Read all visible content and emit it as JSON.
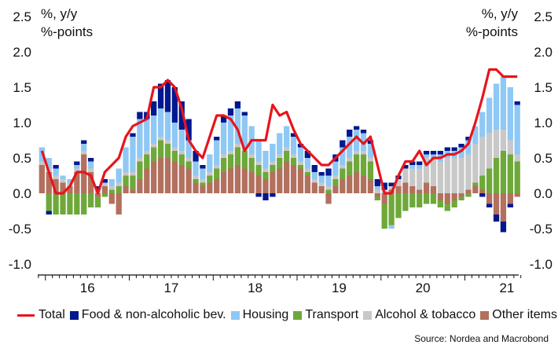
{
  "chart_data": {
    "type": "bar",
    "stacked": true,
    "left_axis_label": [
      "%, y/y",
      "%-points"
    ],
    "right_axis_label": [
      "%, y/y",
      "%-points"
    ],
    "yticks": [
      "2.5",
      "2.0",
      "1.5",
      "1.0",
      "0.5",
      "0.0",
      "-0.5",
      "-1.0"
    ],
    "ylim": [
      -1.1,
      2.5
    ],
    "year_labels": [
      "16",
      "17",
      "18",
      "19",
      "20",
      "21"
    ],
    "period_start": "2015-12",
    "months_per_point": 1,
    "legend_placement": "bottom",
    "grid": false,
    "colors": {
      "total": "#e8141c",
      "food": "#00188f",
      "housing": "#8fc8f4",
      "transport": "#6ea83a",
      "alcohol": "#c8c8c8",
      "other": "#b2705e"
    },
    "legend": {
      "total": "Total",
      "food": "Food & non-alcoholic bev.",
      "housing": "Housing",
      "transport": "Transport",
      "alcohol": "Alcohol & tobacco",
      "other": "Other items"
    },
    "series": [
      {
        "key": "other",
        "values": [
          0.4,
          0.3,
          0.2,
          0.15,
          0.1,
          0.3,
          0.55,
          0.3,
          -0.05,
          0.1,
          -0.15,
          -0.3,
          0.1,
          0.05,
          0.2,
          0.35,
          0.45,
          0.5,
          0.5,
          0.45,
          0.4,
          0.35,
          0.15,
          0.1,
          0.15,
          0.2,
          0.3,
          0.35,
          0.4,
          0.35,
          0.3,
          0.25,
          0.2,
          0.3,
          0.35,
          0.45,
          0.4,
          0.35,
          0.25,
          0.15,
          0.1,
          -0.15,
          0.1,
          0.2,
          0.25,
          0.3,
          0.25,
          0.2,
          -0.05,
          -0.15,
          0.05,
          0.1,
          0.15,
          0.1,
          0.05,
          0.15,
          0.1,
          -0.1,
          -0.15,
          -0.1,
          -0.05,
          0.05,
          0.1,
          0.05,
          -0.15,
          -0.3,
          -0.4,
          -0.15,
          -0.05
        ]
      },
      {
        "key": "transport",
        "values": [
          0.0,
          -0.25,
          -0.3,
          -0.3,
          -0.3,
          -0.3,
          -0.3,
          -0.2,
          -0.15,
          -0.05,
          0.05,
          0.1,
          0.15,
          0.2,
          0.25,
          0.2,
          0.2,
          0.25,
          0.2,
          0.15,
          0.15,
          0.1,
          0.05,
          0.05,
          0.1,
          0.15,
          0.2,
          0.2,
          0.25,
          0.25,
          0.2,
          0.15,
          0.1,
          0.1,
          0.15,
          0.15,
          0.1,
          0.05,
          0.05,
          0.0,
          0.0,
          0.05,
          0.1,
          0.15,
          0.2,
          0.25,
          0.3,
          0.25,
          -0.05,
          -0.35,
          -0.45,
          -0.35,
          -0.25,
          -0.2,
          -0.2,
          -0.15,
          -0.15,
          -0.1,
          -0.1,
          -0.1,
          -0.05,
          -0.05,
          0.05,
          0.2,
          0.35,
          0.5,
          0.6,
          0.55,
          0.45
        ]
      },
      {
        "key": "alcohol",
        "values": [
          0.05,
          0.05,
          0.05,
          0.05,
          0.05,
          0.05,
          0.05,
          0.05,
          0.05,
          0.05,
          0.05,
          0.05,
          0.05,
          0.05,
          0.05,
          0.05,
          0.05,
          0.05,
          0.05,
          0.05,
          0.05,
          0.05,
          0.05,
          0.05,
          0.05,
          0.05,
          0.05,
          0.05,
          0.05,
          0.05,
          0.05,
          0.05,
          0.05,
          0.05,
          0.05,
          0.05,
          0.05,
          0.05,
          0.05,
          0.05,
          0.05,
          0.05,
          0.05,
          0.05,
          0.05,
          0.05,
          0.05,
          0.05,
          0.05,
          0.05,
          0.05,
          0.1,
          0.2,
          0.25,
          0.3,
          0.35,
          0.4,
          0.45,
          0.5,
          0.5,
          0.5,
          0.5,
          0.55,
          0.55,
          0.5,
          0.4,
          0.3,
          0.2,
          0.1
        ]
      },
      {
        "key": "housing",
        "values": [
          0.2,
          0.15,
          0.1,
          0.05,
          0.05,
          0.05,
          0.1,
          0.1,
          0.0,
          0.0,
          0.1,
          0.2,
          0.35,
          0.5,
          0.55,
          0.45,
          0.4,
          0.4,
          0.4,
          0.35,
          0.3,
          0.25,
          0.2,
          0.15,
          0.25,
          0.35,
          0.45,
          0.5,
          0.5,
          0.45,
          0.4,
          0.3,
          0.25,
          0.25,
          0.3,
          0.3,
          0.25,
          0.2,
          0.15,
          0.1,
          0.1,
          0.15,
          0.2,
          0.25,
          0.3,
          0.3,
          0.25,
          0.2,
          0.05,
          0.0,
          -0.05,
          0.0,
          0.0,
          0.05,
          0.05,
          0.05,
          0.05,
          0.1,
          0.1,
          0.1,
          0.15,
          0.2,
          0.25,
          0.35,
          0.5,
          0.65,
          0.75,
          0.75,
          0.7
        ]
      },
      {
        "key": "food",
        "values": [
          0.0,
          -0.05,
          0.05,
          0.0,
          0.0,
          0.05,
          0.05,
          0.05,
          0.05,
          0.05,
          0.0,
          0.0,
          0.0,
          0.05,
          0.1,
          0.1,
          0.2,
          0.35,
          0.45,
          0.5,
          0.4,
          0.3,
          0.15,
          0.05,
          0.0,
          0.05,
          0.1,
          0.1,
          0.1,
          0.05,
          0.0,
          -0.05,
          -0.1,
          -0.05,
          0.0,
          0.0,
          0.05,
          0.05,
          0.1,
          0.1,
          0.05,
          0.1,
          0.1,
          0.1,
          0.1,
          0.05,
          0.05,
          0.05,
          0.1,
          0.1,
          0.05,
          0.05,
          0.05,
          0.05,
          0.05,
          0.05,
          0.05,
          0.05,
          0.05,
          0.05,
          0.05,
          0.05,
          0.0,
          -0.05,
          -0.05,
          -0.1,
          -0.15,
          -0.05,
          0.05
        ]
      },
      {
        "key": "total",
        "type": "line",
        "values": [
          0.6,
          0.3,
          0.0,
          0.0,
          0.1,
          0.3,
          0.3,
          0.25,
          0.0,
          0.3,
          0.4,
          0.5,
          0.8,
          0.95,
          1.0,
          1.05,
          1.5,
          1.5,
          1.6,
          1.5,
          1.2,
          0.75,
          0.6,
          0.5,
          0.8,
          1.1,
          1.1,
          1.05,
          0.9,
          0.6,
          0.75,
          0.75,
          0.75,
          1.25,
          1.1,
          1.15,
          0.9,
          0.7,
          0.6,
          0.5,
          0.4,
          0.4,
          0.5,
          0.6,
          0.7,
          0.8,
          0.7,
          0.8,
          0.4,
          0.0,
          0.0,
          0.25,
          0.45,
          0.45,
          0.6,
          0.4,
          0.5,
          0.5,
          0.55,
          0.55,
          0.6,
          0.7,
          1.0,
          1.35,
          1.75,
          1.75,
          1.65,
          1.65,
          1.65
        ]
      }
    ]
  },
  "source": "Source: Nordea and Macrobond"
}
